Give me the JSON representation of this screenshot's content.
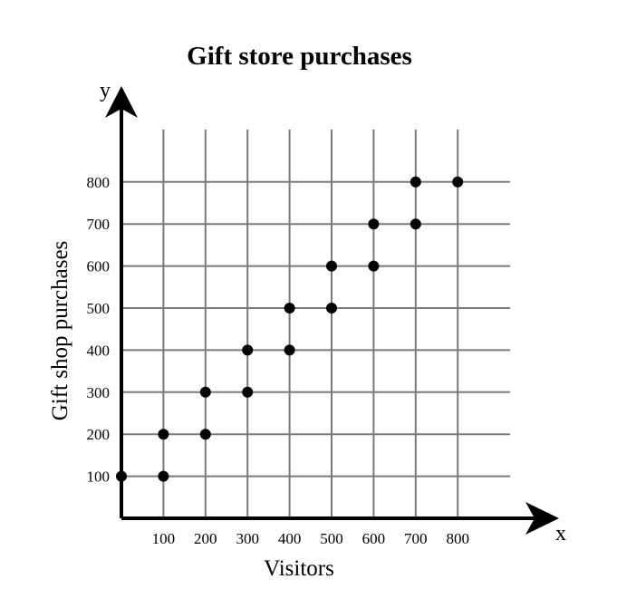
{
  "chart_data": {
    "type": "scatter",
    "title": "Gift store purchases",
    "xlabel": "Visitors",
    "ylabel": "Gift shop purchases",
    "x_axis_letter": "x",
    "y_axis_letter": "y",
    "xlim": [
      0,
      900
    ],
    "ylim": [
      0,
      900
    ],
    "x_ticks": [
      100,
      200,
      300,
      400,
      500,
      600,
      700,
      800
    ],
    "y_ticks": [
      100,
      200,
      300,
      400,
      500,
      600,
      700,
      800
    ],
    "x_tick_labels": [
      "100",
      "200",
      "300",
      "400",
      "500",
      "600",
      "700",
      "800"
    ],
    "y_tick_labels": [
      "100",
      "200",
      "300",
      "400",
      "500",
      "600",
      "700",
      "800"
    ],
    "grid": true,
    "points": [
      {
        "x": 0,
        "y": 100
      },
      {
        "x": 100,
        "y": 100
      },
      {
        "x": 100,
        "y": 200
      },
      {
        "x": 200,
        "y": 200
      },
      {
        "x": 200,
        "y": 300
      },
      {
        "x": 300,
        "y": 300
      },
      {
        "x": 300,
        "y": 400
      },
      {
        "x": 400,
        "y": 400
      },
      {
        "x": 400,
        "y": 500
      },
      {
        "x": 500,
        "y": 500
      },
      {
        "x": 500,
        "y": 600
      },
      {
        "x": 600,
        "y": 600
      },
      {
        "x": 600,
        "y": 700
      },
      {
        "x": 700,
        "y": 700
      },
      {
        "x": 700,
        "y": 800
      },
      {
        "x": 800,
        "y": 800
      }
    ]
  }
}
